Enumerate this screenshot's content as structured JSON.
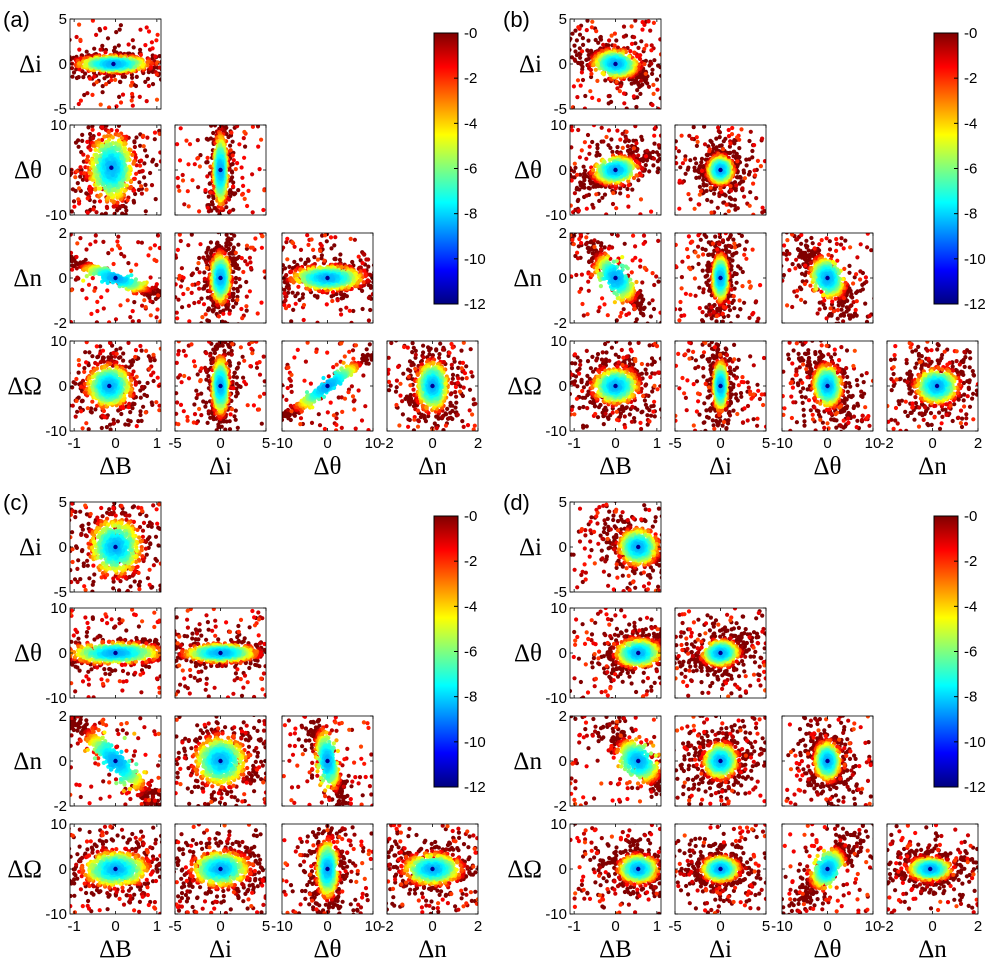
{
  "figure": {
    "panel_labels": [
      "(a)",
      "(b)",
      "(c)",
      "(d)"
    ]
  },
  "chart_data": {
    "type": "scatter",
    "description_grid": "lower-triangular corner plot, 4 panels",
    "variables": [
      {
        "key": "B",
        "label": "ΔB",
        "ticks": [
          "-1",
          "0",
          "1"
        ],
        "range": [
          -1.1,
          1.1
        ],
        "tick_values": [
          -1,
          0,
          1
        ]
      },
      {
        "key": "i",
        "label": "Δi",
        "ticks": [
          "-5",
          "0",
          "5"
        ],
        "range": [
          -5,
          5
        ],
        "tick_values": [
          -5,
          0,
          5
        ]
      },
      {
        "key": "theta",
        "label": "Δθ",
        "ticks": [
          "-10",
          "0",
          "10"
        ],
        "range": [
          -10,
          10
        ],
        "tick_values": [
          -10,
          0,
          10
        ]
      },
      {
        "key": "n",
        "label": "Δn",
        "ticks": [
          "-2",
          "0",
          "2"
        ],
        "range": [
          -2,
          2
        ],
        "tick_values": [
          -2,
          0,
          2
        ]
      },
      {
        "key": "Omega",
        "label": "ΔΩ",
        "ticks": [
          "-10",
          "0",
          "10"
        ],
        "range": [
          -10,
          10
        ],
        "tick_values": [
          -10,
          0,
          10
        ]
      }
    ],
    "x_variables": [
      "B",
      "i",
      "theta",
      "n"
    ],
    "y_variables": [
      "i",
      "theta",
      "n",
      "Omega"
    ],
    "colorbar": {
      "ticks": [
        "-0",
        "-2",
        "-4",
        "-6",
        "-8",
        "-10",
        "-12"
      ],
      "range": [
        -12,
        0
      ],
      "colormap": "jet"
    },
    "panels": [
      {
        "id": "a",
        "label": "(a)",
        "subplots": [
          {
            "x": "B",
            "y": "i",
            "cx": -0.05,
            "cy": 0.0,
            "sx": 0.55,
            "sy": 0.6,
            "corr": -0.1,
            "spread": 2.6
          },
          {
            "x": "B",
            "y": "theta",
            "cx": -0.1,
            "cy": 0.5,
            "sx": 0.35,
            "sy": 4.8,
            "corr": 0.0,
            "spread": 1.6
          },
          {
            "x": "i",
            "y": "theta",
            "cx": 0.0,
            "cy": 0.0,
            "sx": 0.5,
            "sy": 5.0,
            "corr": 0.0,
            "spread": 2.0
          },
          {
            "x": "B",
            "y": "n",
            "cx": 0.0,
            "cy": 0.0,
            "sx": 0.6,
            "sy": 0.45,
            "corr": -0.97,
            "spread": 2.0
          },
          {
            "x": "i",
            "y": "n",
            "cx": 0.0,
            "cy": 0.0,
            "sx": 0.7,
            "sy": 0.7,
            "corr": 0.0,
            "spread": 2.0
          },
          {
            "x": "theta",
            "y": "n",
            "cx": 0.0,
            "cy": 0.0,
            "sx": 5.0,
            "sy": 0.35,
            "corr": 0.0,
            "spread": 1.8
          },
          {
            "x": "B",
            "y": "Omega",
            "cx": -0.15,
            "cy": 0.0,
            "sx": 0.35,
            "sy": 3.0,
            "corr": 0.0,
            "spread": 1.8
          },
          {
            "x": "i",
            "y": "Omega",
            "cx": 0.0,
            "cy": 0.0,
            "sx": 0.6,
            "sy": 4.0,
            "corr": 0.0,
            "spread": 2.2
          },
          {
            "x": "theta",
            "y": "Omega",
            "cx": 0.0,
            "cy": 0.0,
            "sx": 5.5,
            "sy": 4.0,
            "corr": 0.99,
            "spread": 1.6
          },
          {
            "x": "n",
            "y": "Omega",
            "cx": 0.0,
            "cy": 0.0,
            "sx": 0.45,
            "sy": 3.5,
            "corr": 0.0,
            "spread": 2.0
          }
        ]
      },
      {
        "id": "b",
        "label": "(b)",
        "subplots": [
          {
            "x": "B",
            "y": "i",
            "cx": 0.0,
            "cy": 0.0,
            "sx": 0.35,
            "sy": 1.0,
            "corr": -0.55,
            "spread": 2.6
          },
          {
            "x": "B",
            "y": "theta",
            "cx": 0.0,
            "cy": 0.0,
            "sx": 0.35,
            "sy": 2.0,
            "corr": 0.6,
            "spread": 2.6
          },
          {
            "x": "i",
            "y": "theta",
            "cx": 0.0,
            "cy": 0.0,
            "sx": 0.9,
            "sy": 2.0,
            "corr": 0.0,
            "spread": 3.0
          },
          {
            "x": "B",
            "y": "n",
            "cx": 0.0,
            "cy": 0.0,
            "sx": 0.35,
            "sy": 0.75,
            "corr": -0.92,
            "spread": 2.2
          },
          {
            "x": "i",
            "y": "n",
            "cx": 0.0,
            "cy": 0.0,
            "sx": 0.55,
            "sy": 0.65,
            "corr": 0.0,
            "spread": 2.4
          },
          {
            "x": "theta",
            "y": "n",
            "cx": 0.0,
            "cy": 0.0,
            "sx": 2.5,
            "sy": 0.6,
            "corr": -0.75,
            "spread": 2.4
          },
          {
            "x": "B",
            "y": "Omega",
            "cx": 0.0,
            "cy": 0.0,
            "sx": 0.35,
            "sy": 2.5,
            "corr": 0.0,
            "spread": 3.0
          },
          {
            "x": "i",
            "y": "Omega",
            "cx": 0.0,
            "cy": 0.0,
            "sx": 0.5,
            "sy": 3.5,
            "corr": 0.0,
            "spread": 2.8
          },
          {
            "x": "theta",
            "y": "Omega",
            "cx": 0.0,
            "cy": 0.0,
            "sx": 2.0,
            "sy": 3.0,
            "corr": -0.4,
            "spread": 2.8
          },
          {
            "x": "n",
            "y": "Omega",
            "cx": 0.2,
            "cy": 0.0,
            "sx": 0.6,
            "sy": 2.5,
            "corr": 0.0,
            "spread": 3.0
          }
        ]
      },
      {
        "id": "c",
        "label": "(c)",
        "subplots": [
          {
            "x": "B",
            "y": "i",
            "cx": 0.0,
            "cy": 0.0,
            "sx": 0.4,
            "sy": 2.0,
            "corr": 0.0,
            "spread": 2.6
          },
          {
            "x": "B",
            "y": "theta",
            "cx": 0.0,
            "cy": 0.0,
            "sx": 0.7,
            "sy": 1.5,
            "corr": 0.3,
            "spread": 2.4
          },
          {
            "x": "i",
            "y": "theta",
            "cx": 0.0,
            "cy": 0.0,
            "sx": 2.5,
            "sy": 1.3,
            "corr": 0.0,
            "spread": 2.4
          },
          {
            "x": "B",
            "y": "n",
            "cx": 0.0,
            "cy": 0.0,
            "sx": 0.55,
            "sy": 1.0,
            "corr": -0.97,
            "spread": 2.0
          },
          {
            "x": "i",
            "y": "n",
            "cx": 0.0,
            "cy": 0.0,
            "sx": 1.8,
            "sy": 0.7,
            "corr": 0.0,
            "spread": 2.4
          },
          {
            "x": "theta",
            "y": "n",
            "cx": 0.0,
            "cy": 0.0,
            "sx": 1.8,
            "sy": 0.9,
            "corr": -0.85,
            "spread": 2.2
          },
          {
            "x": "B",
            "y": "Omega",
            "cx": 0.0,
            "cy": 0.0,
            "sx": 0.5,
            "sy": 2.5,
            "corr": 0.0,
            "spread": 2.8
          },
          {
            "x": "i",
            "y": "Omega",
            "cx": 0.0,
            "cy": 0.0,
            "sx": 2.0,
            "sy": 2.5,
            "corr": 0.0,
            "spread": 2.8
          },
          {
            "x": "theta",
            "y": "Omega",
            "cx": 0.0,
            "cy": 0.0,
            "sx": 1.5,
            "sy": 4.0,
            "corr": 0.0,
            "spread": 2.4
          },
          {
            "x": "n",
            "y": "Omega",
            "cx": 0.0,
            "cy": 0.0,
            "sx": 0.8,
            "sy": 2.2,
            "corr": 0.0,
            "spread": 2.8
          }
        ]
      },
      {
        "id": "d",
        "label": "(d)",
        "subplots": [
          {
            "x": "B",
            "y": "i",
            "cx": 0.55,
            "cy": 0.0,
            "sx": 0.3,
            "sy": 1.3,
            "corr": -0.3,
            "spread": 2.6
          },
          {
            "x": "B",
            "y": "theta",
            "cx": 0.55,
            "cy": 0.0,
            "sx": 0.35,
            "sy": 2.0,
            "corr": 0.3,
            "spread": 2.8
          },
          {
            "x": "i",
            "y": "theta",
            "cx": 0.0,
            "cy": 0.0,
            "sx": 1.3,
            "sy": 1.8,
            "corr": 0.4,
            "spread": 2.8
          },
          {
            "x": "B",
            "y": "n",
            "cx": 0.55,
            "cy": 0.0,
            "sx": 0.35,
            "sy": 0.65,
            "corr": -0.85,
            "spread": 2.4
          },
          {
            "x": "i",
            "y": "n",
            "cx": 0.0,
            "cy": 0.0,
            "sx": 1.2,
            "sy": 0.5,
            "corr": 0.1,
            "spread": 2.8
          },
          {
            "x": "theta",
            "y": "n",
            "cx": 0.0,
            "cy": 0.0,
            "sx": 1.8,
            "sy": 0.55,
            "corr": -0.2,
            "spread": 2.8
          },
          {
            "x": "B",
            "y": "Omega",
            "cx": 0.55,
            "cy": 0.0,
            "sx": 0.3,
            "sy": 2.0,
            "corr": 0.0,
            "spread": 3.0
          },
          {
            "x": "i",
            "y": "Omega",
            "cx": 0.0,
            "cy": 0.0,
            "sx": 1.3,
            "sy": 1.8,
            "corr": 0.0,
            "spread": 2.8
          },
          {
            "x": "theta",
            "y": "Omega",
            "cx": 0.0,
            "cy": 0.0,
            "sx": 2.5,
            "sy": 3.0,
            "corr": 0.85,
            "spread": 2.4
          },
          {
            "x": "n",
            "y": "Omega",
            "cx": -0.1,
            "cy": 0.0,
            "sx": 0.6,
            "sy": 1.6,
            "corr": 0.0,
            "spread": 2.8
          }
        ]
      }
    ]
  }
}
